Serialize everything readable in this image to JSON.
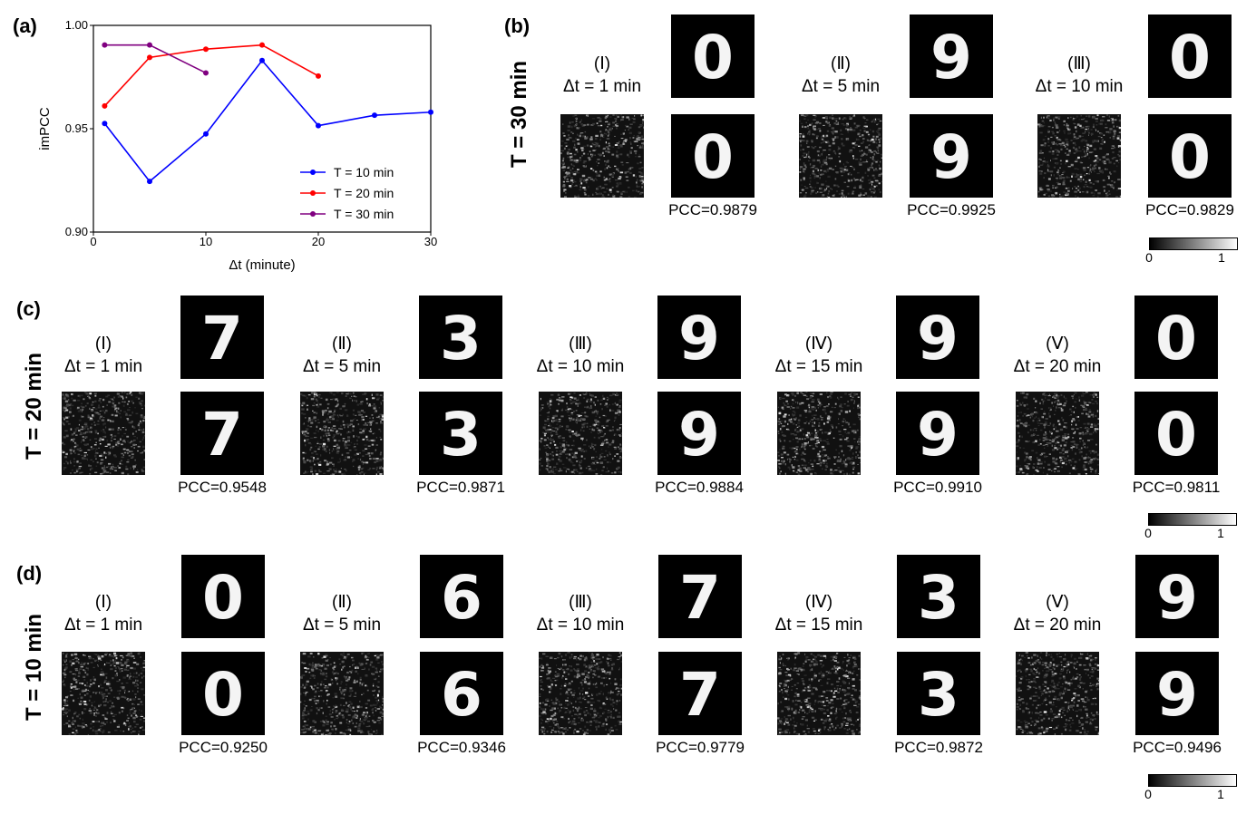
{
  "panel_a": {
    "label": "(a)",
    "chart_data": {
      "type": "line",
      "xlabel": "Δt (minute)",
      "ylabel": "imPCC",
      "xlim": [
        0,
        30
      ],
      "ylim": [
        0.9,
        1.0
      ],
      "xticks": [
        "0",
        "10",
        "20",
        "30"
      ],
      "yticks": [
        "0.90",
        "0.95",
        "1.00"
      ],
      "legend_position": "lower-right",
      "series": [
        {
          "name": "T = 10 min",
          "color": "#0000ff",
          "x": [
            1,
            5,
            10,
            15,
            20,
            25,
            30
          ],
          "y": [
            0.9525,
            0.9245,
            0.9475,
            0.983,
            0.9515,
            0.9565,
            0.958
          ]
        },
        {
          "name": "T = 20 min",
          "color": "#ff0000",
          "x": [
            1,
            5,
            10,
            15,
            20
          ],
          "y": [
            0.961,
            0.9845,
            0.9885,
            0.9905,
            0.9755
          ]
        },
        {
          "name": "T = 30 min",
          "color": "#800080",
          "x": [
            1,
            5,
            10
          ],
          "y": [
            0.9905,
            0.9905,
            0.977
          ]
        }
      ]
    }
  },
  "panel_b": {
    "label": "(b)",
    "row_label": "T = 30 min",
    "groups": [
      {
        "roman": "(Ⅰ)",
        "dt": "Δt = 1 min",
        "digit": "0",
        "pcc": "PCC=0.9879"
      },
      {
        "roman": "(Ⅱ)",
        "dt": "Δt = 5 min",
        "digit": "9",
        "pcc": "PCC=0.9925"
      },
      {
        "roman": "(Ⅲ)",
        "dt": "Δt = 10 min",
        "digit": "0",
        "pcc": "PCC=0.9829"
      }
    ],
    "colorbar": {
      "min": "0",
      "max": "1"
    }
  },
  "panel_c": {
    "label": "(c)",
    "row_label": "T = 20 min",
    "groups": [
      {
        "roman": "(Ⅰ)",
        "dt": "Δt = 1 min",
        "digit": "7",
        "pcc": "PCC=0.9548"
      },
      {
        "roman": "(Ⅱ)",
        "dt": "Δt = 5 min",
        "digit": "3",
        "pcc": "PCC=0.9871"
      },
      {
        "roman": "(Ⅲ)",
        "dt": "Δt = 10 min",
        "digit": "9",
        "pcc": "PCC=0.9884"
      },
      {
        "roman": "(Ⅳ)",
        "dt": "Δt = 15 min",
        "digit": "9",
        "pcc": "PCC=0.9910"
      },
      {
        "roman": "(Ⅴ)",
        "dt": "Δt = 20 min",
        "digit": "0",
        "pcc": "PCC=0.9811"
      }
    ],
    "colorbar": {
      "min": "0",
      "max": "1"
    }
  },
  "panel_d": {
    "label": "(d)",
    "row_label": "T = 10 min",
    "groups": [
      {
        "roman": "(Ⅰ)",
        "dt": "Δt = 1 min",
        "digit": "0",
        "pcc": "PCC=0.9250"
      },
      {
        "roman": "(Ⅱ)",
        "dt": "Δt = 5 min",
        "digit": "6",
        "pcc": "PCC=0.9346"
      },
      {
        "roman": "(Ⅲ)",
        "dt": "Δt = 10 min",
        "digit": "7",
        "pcc": "PCC=0.9779"
      },
      {
        "roman": "(Ⅳ)",
        "dt": "Δt = 15 min",
        "digit": "3",
        "pcc": "PCC=0.9872"
      },
      {
        "roman": "(Ⅴ)",
        "dt": "Δt = 20 min",
        "digit": "9",
        "pcc": "PCC=0.9496"
      }
    ],
    "colorbar": {
      "min": "0",
      "max": "1"
    }
  }
}
